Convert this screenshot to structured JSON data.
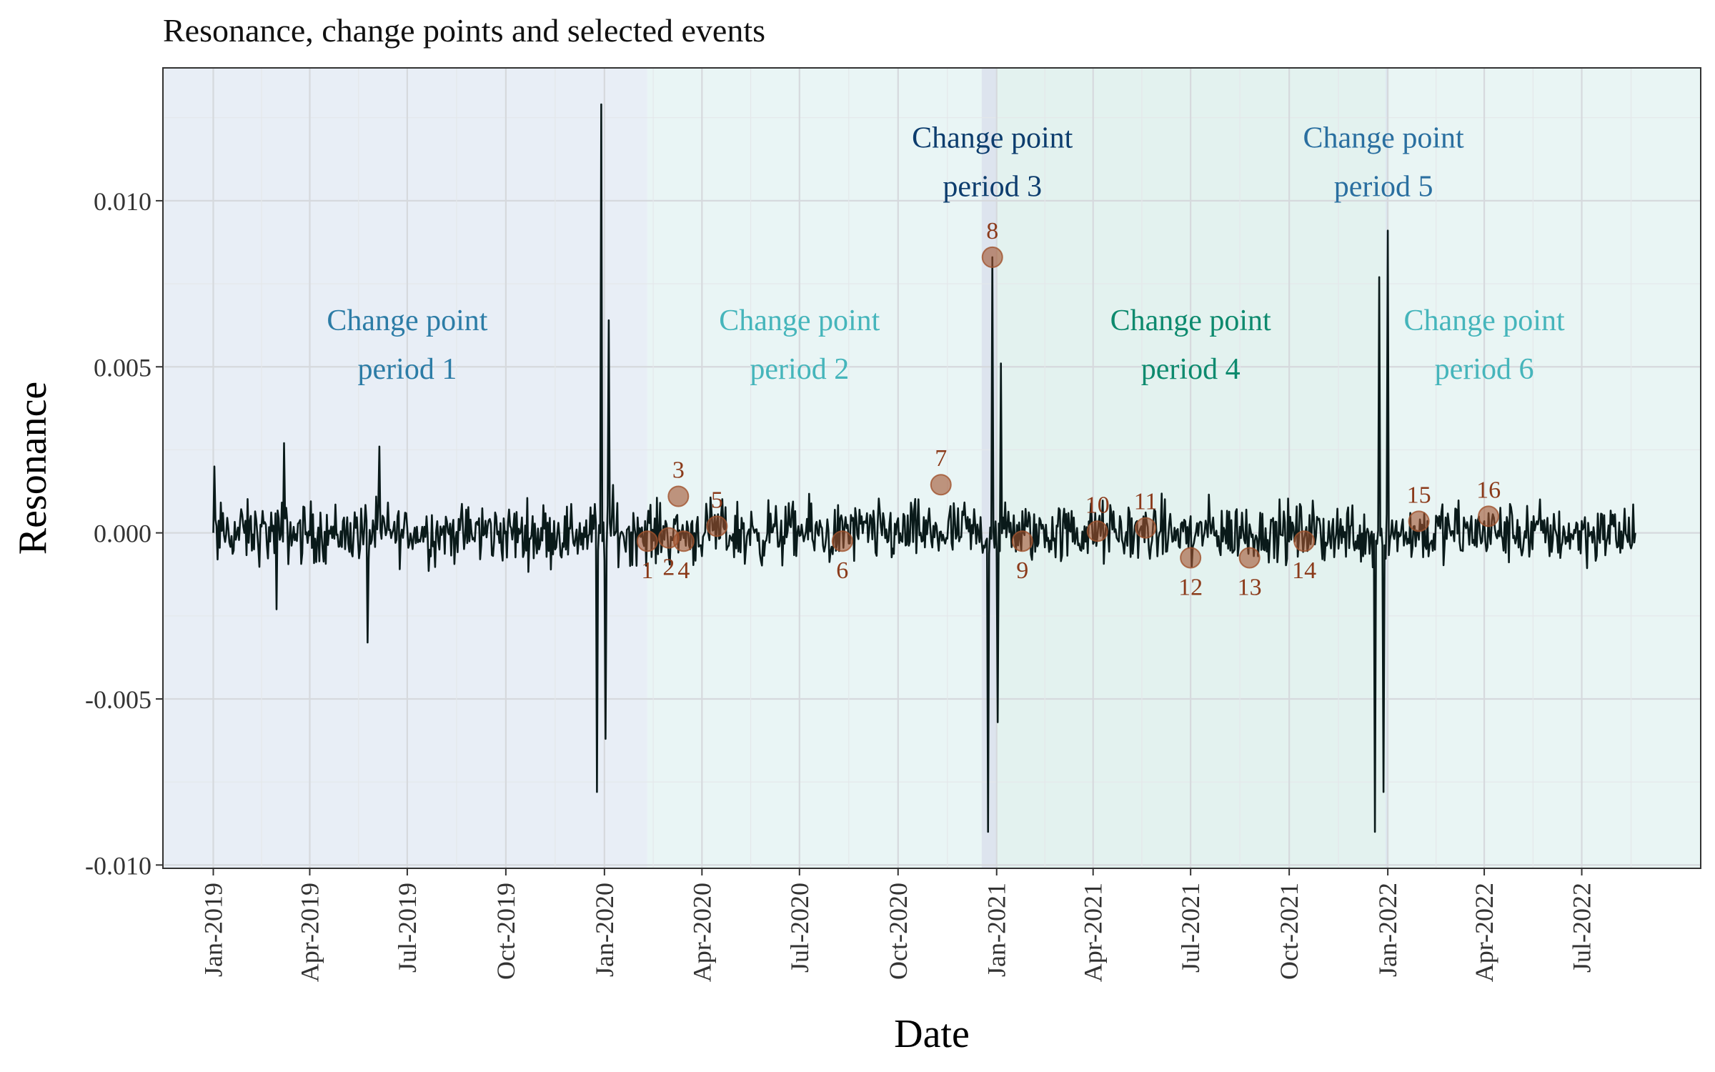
{
  "chart_data": {
    "type": "line",
    "title": "Resonance, change points and selected events",
    "xlabel": "Date",
    "ylabel": "Resonance",
    "xlim": [
      "2018-11-15",
      "2022-10-20"
    ],
    "ylim": [
      -0.0101,
      0.014
    ],
    "y_ticks": [
      {
        "value": 0.01,
        "label": "0.010"
      },
      {
        "value": 0.005,
        "label": "0.005"
      },
      {
        "value": 0.0,
        "label": "0.000"
      },
      {
        "value": -0.005,
        "label": "-0.005"
      },
      {
        "value": -0.01,
        "label": "-0.010"
      }
    ],
    "x_ticks": [
      {
        "date": "2019-01-01",
        "label": "Jan-2019"
      },
      {
        "date": "2019-04-01",
        "label": "Apr-2019"
      },
      {
        "date": "2019-07-01",
        "label": "Jul-2019"
      },
      {
        "date": "2019-10-01",
        "label": "Oct-2019"
      },
      {
        "date": "2020-01-01",
        "label": "Jan-2020"
      },
      {
        "date": "2020-04-01",
        "label": "Apr-2020"
      },
      {
        "date": "2020-07-01",
        "label": "Jul-2020"
      },
      {
        "date": "2020-10-01",
        "label": "Oct-2020"
      },
      {
        "date": "2021-01-01",
        "label": "Jan-2021"
      },
      {
        "date": "2021-04-01",
        "label": "Apr-2021"
      },
      {
        "date": "2021-07-01",
        "label": "Jul-2021"
      },
      {
        "date": "2021-10-01",
        "label": "Oct-2021"
      },
      {
        "date": "2022-01-01",
        "label": "Jan-2022"
      },
      {
        "date": "2022-04-01",
        "label": "Apr-2022"
      },
      {
        "date": "2022-07-01",
        "label": "Jul-2022"
      }
    ],
    "grid": true,
    "line_color": "#0a1a1a",
    "periods": [
      {
        "label_line1": "Change point",
        "label_line2": "period 1",
        "start": "2018-11-15",
        "end": "2020-02-10",
        "fill": "#e8eef6",
        "label_color": "#2c7ca6",
        "label_date": "2019-07-01",
        "label_value": 0.0061
      },
      {
        "label_line1": "Change point",
        "label_line2": "period 2",
        "start": "2020-02-10",
        "end": "2020-12-18",
        "fill": "#e9f5f5",
        "label_color": "#45b5bb",
        "label_date": "2020-07-01",
        "label_value": 0.0061
      },
      {
        "label_line1": "Change point",
        "label_line2": "period 3",
        "start": "2020-12-18",
        "end": "2021-01-01",
        "fill": "#dde4ee",
        "label_color": "#0d3d6e",
        "label_date": "2020-12-28",
        "label_value": 0.0116
      },
      {
        "label_line1": "Change point",
        "label_line2": "period 4",
        "start": "2021-01-01",
        "end": "2021-12-30",
        "fill": "#e3f2ef",
        "label_color": "#0d8a6e",
        "label_date": "2021-07-01",
        "label_value": 0.0061
      },
      {
        "label_line1": "Change point",
        "label_line2": "period 5",
        "start": "2021-12-30",
        "end": "2022-01-01",
        "fill": "#dce6ee",
        "label_color": "#2a6fa0",
        "label_date": "2021-12-28",
        "label_value": 0.0116
      },
      {
        "label_line1": "Change point",
        "label_line2": "period 6",
        "start": "2022-01-01",
        "end": "2022-10-20",
        "fill": "#e9f5f4",
        "label_color": "#45b5bb",
        "label_date": "2022-04-01",
        "label_value": 0.0061
      }
    ],
    "events": [
      {
        "label": "1",
        "date": "2020-02-10",
        "value": -0.00025,
        "label_pos": "below"
      },
      {
        "label": "2",
        "date": "2020-03-01",
        "value": -0.00015,
        "label_pos": "below"
      },
      {
        "label": "3",
        "date": "2020-03-10",
        "value": 0.0011,
        "label_pos": "above"
      },
      {
        "label": "4",
        "date": "2020-03-15",
        "value": -0.00025,
        "label_pos": "below"
      },
      {
        "label": "5",
        "date": "2020-04-15",
        "value": 0.0002,
        "label_pos": "above"
      },
      {
        "label": "6",
        "date": "2020-08-10",
        "value": -0.00025,
        "label_pos": "below"
      },
      {
        "label": "7",
        "date": "2020-11-10",
        "value": 0.00145,
        "label_pos": "above"
      },
      {
        "label": "8",
        "date": "2020-12-28",
        "value": 0.0083,
        "label_pos": "above"
      },
      {
        "label": "9",
        "date": "2021-01-25",
        "value": -0.00025,
        "label_pos": "below"
      },
      {
        "label": "10",
        "date": "2021-04-05",
        "value": 5e-05,
        "label_pos": "above"
      },
      {
        "label": "11",
        "date": "2021-05-20",
        "value": 0.00015,
        "label_pos": "above"
      },
      {
        "label": "12",
        "date": "2021-07-01",
        "value": -0.00075,
        "label_pos": "below"
      },
      {
        "label": "13",
        "date": "2021-08-25",
        "value": -0.00075,
        "label_pos": "below"
      },
      {
        "label": "14",
        "date": "2021-10-15",
        "value": -0.00025,
        "label_pos": "below"
      },
      {
        "label": "15",
        "date": "2022-01-30",
        "value": 0.00035,
        "label_pos": "above"
      },
      {
        "label": "16",
        "date": "2022-04-05",
        "value": 0.0005,
        "label_pos": "above"
      }
    ],
    "event_color": "#a0522d",
    "key_points": [
      {
        "date": "2019-01-01",
        "value": 0.0
      },
      {
        "date": "2019-01-02",
        "value": 0.002
      },
      {
        "date": "2019-01-05",
        "value": -0.0008
      },
      {
        "date": "2019-03-01",
        "value": -0.0023
      },
      {
        "date": "2019-03-08",
        "value": 0.0027
      },
      {
        "date": "2019-05-25",
        "value": -0.0033
      },
      {
        "date": "2019-06-05",
        "value": 0.0026
      },
      {
        "date": "2019-12-25",
        "value": -0.0078
      },
      {
        "date": "2019-12-29",
        "value": 0.0129
      },
      {
        "date": "2020-01-02",
        "value": -0.0062
      },
      {
        "date": "2020-01-05",
        "value": 0.0064
      },
      {
        "date": "2020-12-24",
        "value": -0.009
      },
      {
        "date": "2020-12-28",
        "value": 0.0083
      },
      {
        "date": "2021-01-02",
        "value": -0.0057
      },
      {
        "date": "2021-01-05",
        "value": 0.0051
      },
      {
        "date": "2021-12-20",
        "value": -0.009
      },
      {
        "date": "2021-12-24",
        "value": 0.0077
      },
      {
        "date": "2021-12-28",
        "value": -0.0078
      },
      {
        "date": "2022-01-01",
        "value": 0.0091
      },
      {
        "date": "2022-08-20",
        "value": 0.0
      }
    ],
    "noise_level": 0.0007,
    "series_end": "2022-08-20"
  }
}
